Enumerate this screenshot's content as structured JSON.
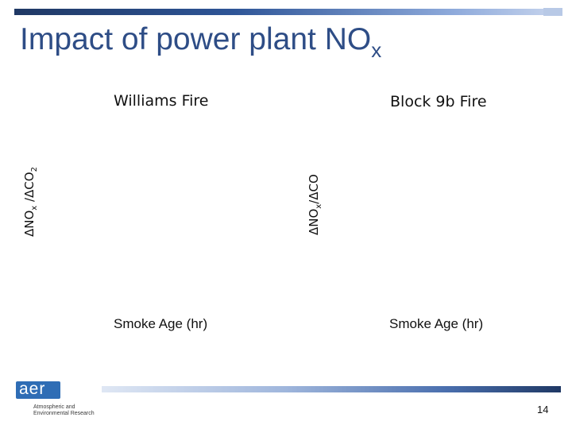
{
  "slide": {
    "title": "Impact of power plant NO",
    "title_sub": "x",
    "page_number": "14"
  },
  "left_panel": {
    "title": "Williams Fire",
    "y_label_1": "ΔNO",
    "y_label_1_sub": "x",
    "y_label_2": " /ΔCO",
    "y_label_2_sub": "2",
    "x_label": "Smoke Age (hr)"
  },
  "right_panel": {
    "title": "Block 9b Fire",
    "y_label_1": "ΔNO",
    "y_label_1_sub": "x",
    "y_label_2": "/ΔCO",
    "x_label": "Smoke Age (hr)"
  },
  "logo": {
    "text": "aer",
    "line1": "Atmospheric and",
    "line2": "Environmental Research"
  },
  "colors": {
    "title": "#2e4d86",
    "bar_dark": "#1f3864",
    "logo_blue": "#2f6db5"
  }
}
